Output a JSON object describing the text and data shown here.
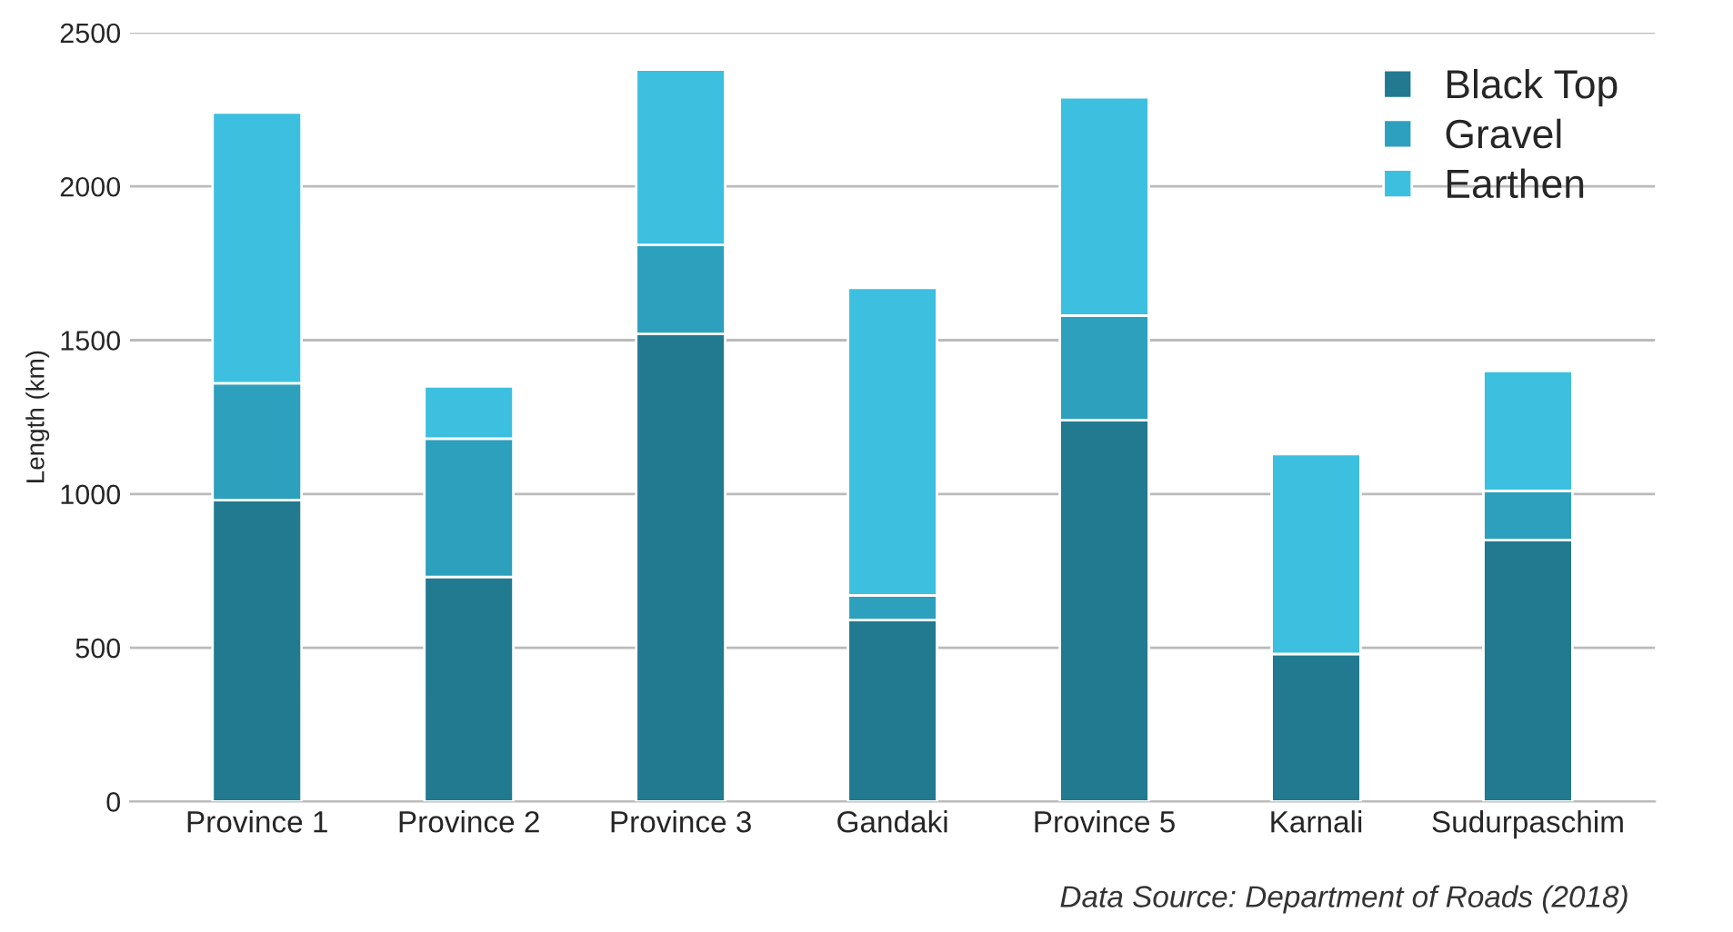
{
  "chart_data": {
    "type": "bar",
    "stacked": true,
    "ylabel": "Length (km)",
    "categories": [
      "Province 1",
      "Province 2",
      "Province 3",
      "Gandaki",
      "Province 5",
      "Karnali",
      "Sudurpaschim"
    ],
    "series": [
      {
        "name": "Black Top",
        "color": "#217a8f",
        "values": [
          980,
          730,
          1520,
          590,
          1240,
          480,
          850
        ]
      },
      {
        "name": "Gravel",
        "color": "#2ca0bd",
        "values": [
          380,
          450,
          290,
          80,
          340,
          0,
          160
        ]
      },
      {
        "name": "Earthen",
        "color": "#3dbfdf",
        "values": [
          880,
          170,
          570,
          1000,
          710,
          650,
          390
        ]
      }
    ],
    "ylim": [
      0,
      2500
    ],
    "yticks": [
      0,
      500,
      1000,
      1500,
      2000,
      2500
    ],
    "grid": "y",
    "legend": "top right",
    "annotations": [
      "Data Source: Department of Roads (2018)"
    ]
  }
}
